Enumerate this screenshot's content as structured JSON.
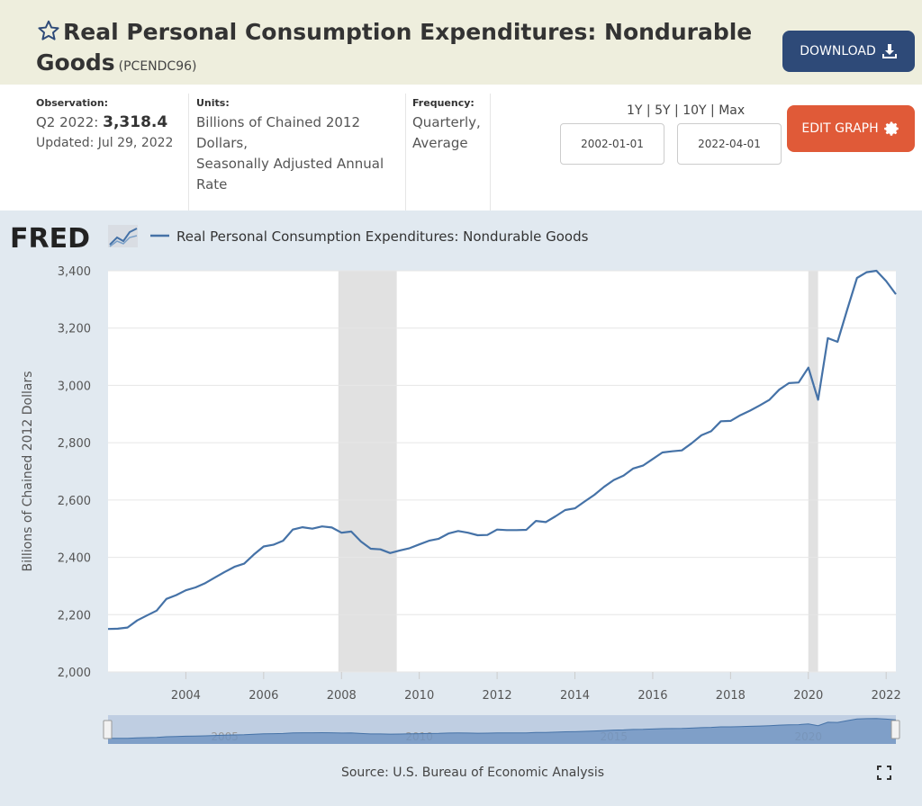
{
  "header": {
    "title": "Real Personal Consumption Expenditures: Nondurable Goods",
    "series_code": "(PCENDC96)",
    "download_label": "DOWNLOAD"
  },
  "meta": {
    "observation_label": "Observation:",
    "observation_period": "Q2 2022:",
    "observation_value": "3,318.4",
    "updated": "Updated: Jul 29, 2022",
    "units_label": "Units:",
    "units_lines": [
      "Billions of Chained 2012",
      "Dollars,",
      "Seasonally Adjusted Annual",
      "Rate"
    ],
    "frequency_label": "Frequency:",
    "frequency_lines": [
      "Quarterly,",
      "Average"
    ]
  },
  "controls": {
    "ranges": [
      "1Y",
      "5Y",
      "10Y",
      "Max"
    ],
    "start_date": "2002-01-01",
    "end_date": "2022-04-01",
    "edit_label": "EDIT GRAPH"
  },
  "brand": "FRED",
  "footer": {
    "source": "Source: U.S. Bureau of Economic Analysis"
  },
  "colors": {
    "line": "#4572a7",
    "recession": "#e1e1e1",
    "download": "#2e4a78",
    "edit": "#e05a38"
  },
  "chart_data": {
    "type": "line",
    "title": "",
    "legend": "Real Personal Consumption Expenditures: Nondurable Goods",
    "legend_position": "top-left",
    "xlabel": "",
    "ylabel": "Billions of Chained 2012 Dollars",
    "ylim": [
      2000,
      3400
    ],
    "xlim": [
      2002.0,
      2022.25
    ],
    "yticks": [
      2000,
      2200,
      2400,
      2600,
      2800,
      3000,
      3200,
      3400
    ],
    "ytick_labels": [
      "2,000",
      "2,200",
      "2,400",
      "2,600",
      "2,800",
      "3,000",
      "3,200",
      "3,400"
    ],
    "xticks": [
      2004,
      2006,
      2008,
      2010,
      2012,
      2014,
      2016,
      2018,
      2020,
      2022
    ],
    "xtick_labels": [
      "2004",
      "2006",
      "2008",
      "2010",
      "2012",
      "2014",
      "2016",
      "2018",
      "2020",
      "2022"
    ],
    "grid": true,
    "recessions": [
      [
        2007.92,
        2009.42
      ],
      [
        2020.0,
        2020.25
      ]
    ],
    "navigator_labels": [
      "2005",
      "2010",
      "2015",
      "2020"
    ],
    "series": [
      {
        "name": "Real Personal Consumption Expenditures: Nondurable Goods",
        "start": 2002.0,
        "step": 0.25,
        "values": [
          2150,
          2151,
          2155,
          2180,
          2197,
          2214,
          2255,
          2268,
          2285,
          2295,
          2310,
          2330,
          2349,
          2367,
          2378,
          2410,
          2438,
          2444,
          2458,
          2497,
          2505,
          2500,
          2508,
          2504,
          2486,
          2490,
          2455,
          2430,
          2428,
          2415,
          2424,
          2432,
          2445,
          2458,
          2465,
          2483,
          2492,
          2486,
          2477,
          2478,
          2497,
          2495,
          2495,
          2496,
          2527,
          2523,
          2543,
          2565,
          2571,
          2595,
          2618,
          2646,
          2670,
          2685,
          2710,
          2720,
          2743,
          2766,
          2770,
          2773,
          2798,
          2826,
          2840,
          2875,
          2876,
          2896,
          2912,
          2930,
          2950,
          2985,
          3008,
          3010,
          3062,
          2950,
          3165,
          3152,
          3265,
          3375,
          3395,
          3400,
          3364,
          3318
        ]
      }
    ]
  }
}
